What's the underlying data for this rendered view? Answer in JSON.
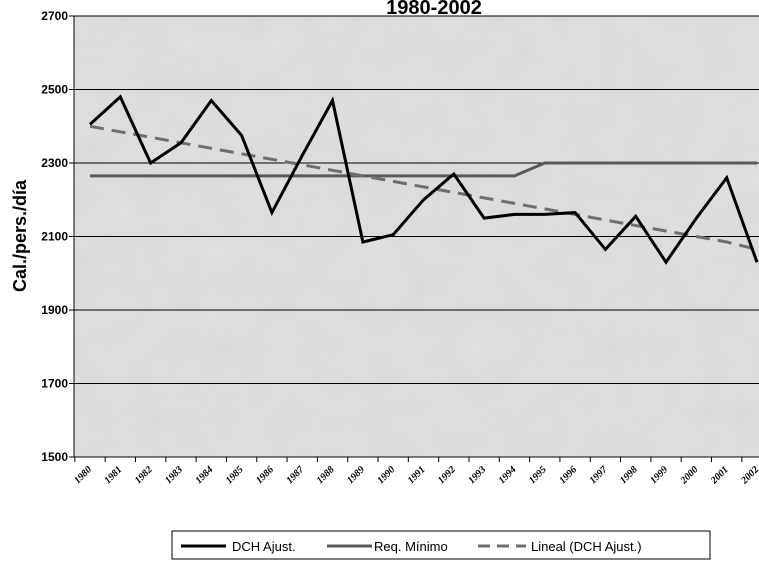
{
  "chart_data": {
    "type": "line",
    "title": "1980-2002",
    "xlabel": "",
    "ylabel": "Cal./pers./día",
    "ylim": [
      1500,
      2700
    ],
    "yticks": [
      "1500",
      "1700",
      "1900",
      "2100",
      "2300",
      "2500",
      "2700"
    ],
    "grid": true,
    "legend_position": "bottom",
    "categories": [
      "1980",
      "1981",
      "1982",
      "1983",
      "1984",
      "1985",
      "1986",
      "1987",
      "1988",
      "1989",
      "1990",
      "1991",
      "1992",
      "1993",
      "1994",
      "1995",
      "1996",
      "1997",
      "1998",
      "1999",
      "2000",
      "2001",
      "2002"
    ],
    "series": [
      {
        "name": "DCH Ajust.",
        "color": "#000000",
        "style": "solid",
        "values": [
          2405,
          2480,
          2300,
          2355,
          2470,
          2375,
          2165,
          2320,
          2470,
          2085,
          2105,
          2200,
          2270,
          2150,
          2160,
          2160,
          2165,
          2065,
          2155,
          2030,
          2150,
          2260,
          2030
        ]
      },
      {
        "name": "Req. Mínimo",
        "color": "#5a5a5a",
        "style": "solid",
        "values": [
          2265,
          2265,
          2265,
          2265,
          2265,
          2265,
          2265,
          2265,
          2265,
          2265,
          2265,
          2265,
          2265,
          2265,
          2265,
          2300,
          2300,
          2300,
          2300,
          2300,
          2300,
          2300,
          2300
        ]
      },
      {
        "name": "Lineal (DCH Ajust.)",
        "color": "#6e6e6e",
        "style": "dashed",
        "values": [
          2400,
          2385,
          2370,
          2355,
          2340,
          2325,
          2310,
          2295,
          2280,
          2265,
          2250,
          2235,
          2220,
          2205,
          2190,
          2175,
          2160,
          2145,
          2130,
          2115,
          2100,
          2085,
          2065
        ]
      }
    ]
  }
}
